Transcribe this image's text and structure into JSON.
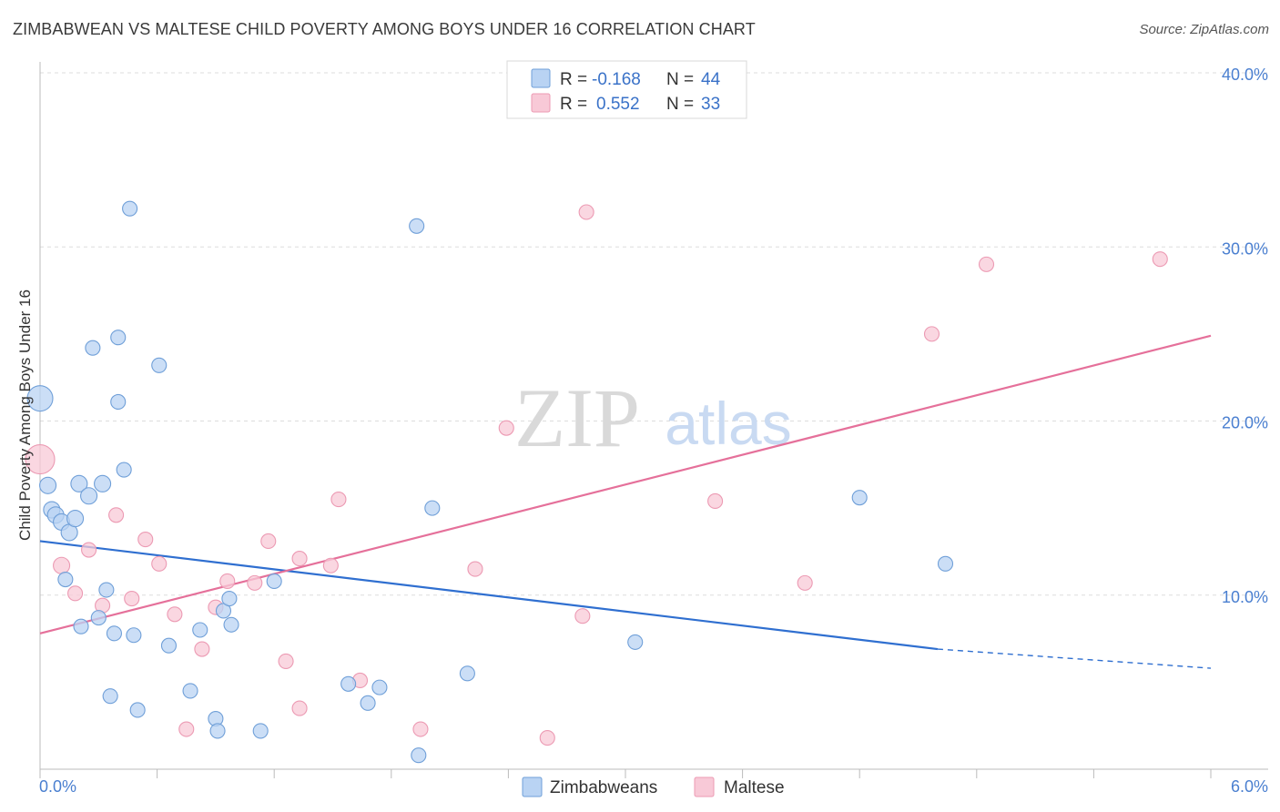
{
  "title": "ZIMBABWEAN VS MALTESE CHILD POVERTY AMONG BOYS UNDER 16 CORRELATION CHART",
  "source": "Source: ZipAtlas.com",
  "watermark": {
    "zip": "ZIP",
    "atlas": "atlas"
  },
  "colors": {
    "blue_fill": "#b9d3f3",
    "blue_stroke": "#6f9fd8",
    "blue_line": "#2f6fd0",
    "pink_fill": "#f8c9d7",
    "pink_stroke": "#ec9ab3",
    "pink_line": "#e5709a",
    "tick": "#4a7fd0",
    "grid": "#dddddd"
  },
  "legend": {
    "rows": [
      {
        "r_label": "R =",
        "r_value": "-0.168",
        "n_label": "N =",
        "n_value": "44"
      },
      {
        "r_label": "R =",
        "r_value": "0.552",
        "n_label": "N =",
        "n_value": "33"
      }
    ]
  },
  "chart_data": {
    "type": "scatter",
    "title": "ZIMBABWEAN VS MALTESE CHILD POVERTY AMONG BOYS UNDER 16 CORRELATION CHART",
    "xlabel": "",
    "ylabel": "Child Poverty Among Boys Under 16",
    "xlim": [
      0,
      6
    ],
    "ylim": [
      0,
      40
    ],
    "x_tick_labels": [
      "0.0%",
      "6.0%"
    ],
    "y_ticks": [
      10,
      20,
      30,
      40
    ],
    "y_tick_labels": [
      "10.0%",
      "20.0%",
      "30.0%",
      "40.0%"
    ],
    "grid": true,
    "legend_position": "top-center",
    "series": [
      {
        "name": "Zimbabweans",
        "color": "#6f9fd8",
        "r": -0.168,
        "n": 44,
        "trend": {
          "x": [
            0,
            4.6
          ],
          "y": [
            13.1,
            6.9
          ],
          "dashed_to": [
            6,
            5.8
          ]
        },
        "points": [
          [
            0.0,
            21.3,
            14
          ],
          [
            0.04,
            16.3,
            9
          ],
          [
            0.06,
            14.9,
            9
          ],
          [
            0.08,
            14.6,
            9
          ],
          [
            0.11,
            14.2,
            9
          ],
          [
            0.15,
            13.6,
            9
          ],
          [
            0.18,
            14.4,
            9
          ],
          [
            0.13,
            10.9,
            8
          ],
          [
            0.2,
            16.4,
            9
          ],
          [
            0.25,
            15.7,
            9
          ],
          [
            0.32,
            16.4,
            9
          ],
          [
            0.27,
            24.2,
            8
          ],
          [
            0.4,
            24.8,
            8
          ],
          [
            0.46,
            32.2,
            8
          ],
          [
            0.61,
            23.2,
            8
          ],
          [
            0.4,
            21.1,
            8
          ],
          [
            0.43,
            17.2,
            8
          ],
          [
            0.21,
            8.2,
            8
          ],
          [
            0.3,
            8.7,
            8
          ],
          [
            0.34,
            10.3,
            8
          ],
          [
            0.38,
            7.8,
            8
          ],
          [
            0.48,
            7.7,
            8
          ],
          [
            0.66,
            7.1,
            8
          ],
          [
            0.36,
            4.2,
            8
          ],
          [
            0.5,
            3.4,
            8
          ],
          [
            0.77,
            4.5,
            8
          ],
          [
            0.82,
            8.0,
            8
          ],
          [
            0.9,
            2.9,
            8
          ],
          [
            0.91,
            2.2,
            8
          ],
          [
            0.94,
            9.1,
            8
          ],
          [
            0.97,
            9.8,
            8
          ],
          [
            0.98,
            8.3,
            8
          ],
          [
            1.13,
            2.2,
            8
          ],
          [
            1.2,
            10.8,
            8
          ],
          [
            1.58,
            4.9,
            8
          ],
          [
            1.68,
            3.8,
            8
          ],
          [
            1.74,
            4.7,
            8
          ],
          [
            1.93,
            31.2,
            8
          ],
          [
            2.01,
            15.0,
            8
          ],
          [
            1.94,
            0.8,
            8
          ],
          [
            2.19,
            5.5,
            8
          ],
          [
            3.05,
            7.3,
            8
          ],
          [
            4.2,
            15.6,
            8
          ],
          [
            4.64,
            11.8,
            8
          ]
        ]
      },
      {
        "name": "Maltese",
        "color": "#ec9ab3",
        "r": 0.552,
        "n": 33,
        "trend": {
          "x": [
            0,
            6
          ],
          "y": [
            7.8,
            24.9
          ]
        },
        "points": [
          [
            0.0,
            17.8,
            16
          ],
          [
            0.11,
            11.7,
            9
          ],
          [
            0.18,
            10.1,
            8
          ],
          [
            0.25,
            12.6,
            8
          ],
          [
            0.32,
            9.4,
            8
          ],
          [
            0.39,
            14.6,
            8
          ],
          [
            0.47,
            9.8,
            8
          ],
          [
            0.54,
            13.2,
            8
          ],
          [
            0.61,
            11.8,
            8
          ],
          [
            0.69,
            8.9,
            8
          ],
          [
            0.75,
            2.3,
            8
          ],
          [
            0.83,
            6.9,
            8
          ],
          [
            0.9,
            9.3,
            8
          ],
          [
            0.96,
            10.8,
            8
          ],
          [
            1.1,
            10.7,
            8
          ],
          [
            1.17,
            13.1,
            8
          ],
          [
            1.26,
            6.2,
            8
          ],
          [
            1.33,
            3.5,
            8
          ],
          [
            1.33,
            12.1,
            8
          ],
          [
            1.49,
            11.7,
            8
          ],
          [
            1.53,
            15.5,
            8
          ],
          [
            1.64,
            5.1,
            8
          ],
          [
            1.95,
            2.3,
            8
          ],
          [
            2.23,
            11.5,
            8
          ],
          [
            2.39,
            19.6,
            8
          ],
          [
            2.6,
            1.8,
            8
          ],
          [
            2.78,
            8.8,
            8
          ],
          [
            2.8,
            32.0,
            8
          ],
          [
            3.46,
            15.4,
            8
          ],
          [
            3.92,
            10.7,
            8
          ],
          [
            4.57,
            25.0,
            8
          ],
          [
            4.85,
            29.0,
            8
          ],
          [
            5.74,
            29.3,
            8
          ]
        ]
      }
    ]
  }
}
